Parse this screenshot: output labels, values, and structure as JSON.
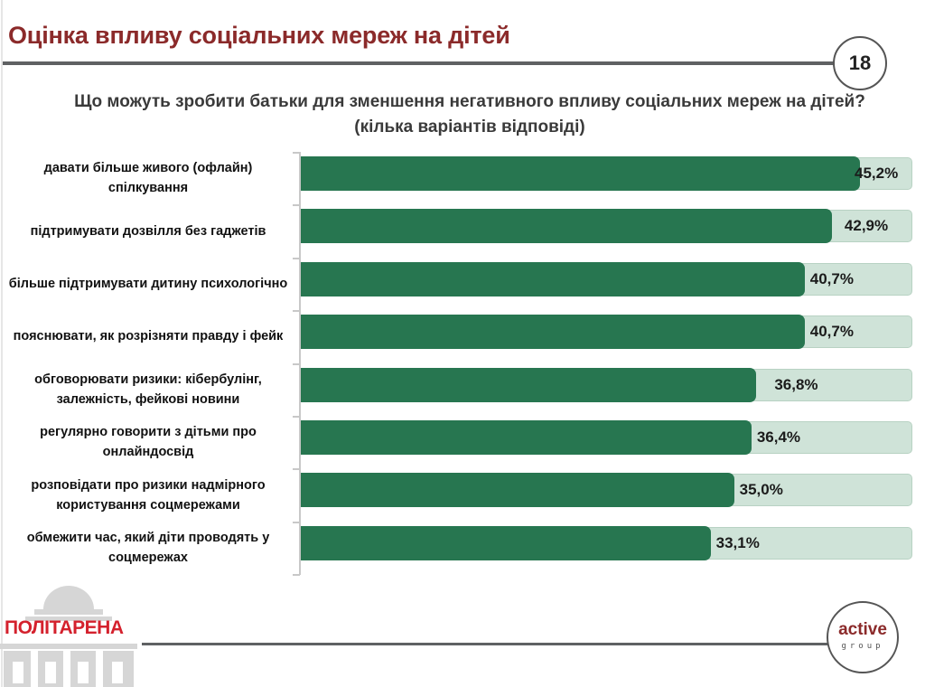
{
  "header": {
    "title": "Оцінка впливу соціальних мереж на дітей",
    "page_number": "18"
  },
  "colors": {
    "title": "#8b2a2a",
    "bar": "#277650",
    "track": "#cfe3d8",
    "logo_red": "#d4212d"
  },
  "chart_data": {
    "type": "bar",
    "orientation": "horizontal",
    "title": "Що можуть зробити батьки для зменшення негативного впливу соціальних мереж на дітей?",
    "subtitle": "(кілька варіантів відповіді)",
    "xlabel": "",
    "ylabel": "",
    "unit": "%",
    "xlim": [
      0,
      49.4
    ],
    "grid": false,
    "legend": "none",
    "categories": [
      "давати більше живого (офлайн) спілкування",
      "підтримувати дозвілля без гаджетів",
      "більше підтримувати дитину психологічно",
      "пояснювати, як розрізняти правду і фейк",
      "обговорювати ризики: кібербулінг, залежність, фейкові новини",
      "регулярно говорити з дітьми про онлайндосвід",
      "розповідати про ризики надмірного користування соцмережами",
      "обмежити час, який діти проводять у соцмережах"
    ],
    "values": [
      45.2,
      42.9,
      40.7,
      40.7,
      36.8,
      36.4,
      35.0,
      33.1
    ],
    "value_labels": [
      "45,2%",
      "42,9%",
      "40,7%",
      "40,7%",
      "36,8%",
      "36,4%",
      "35,0%",
      "33,1%"
    ]
  },
  "footer": {
    "left_logo_text": "ПОЛІТАРЕНА",
    "right_logo_word": "active",
    "right_logo_sub": "group"
  }
}
